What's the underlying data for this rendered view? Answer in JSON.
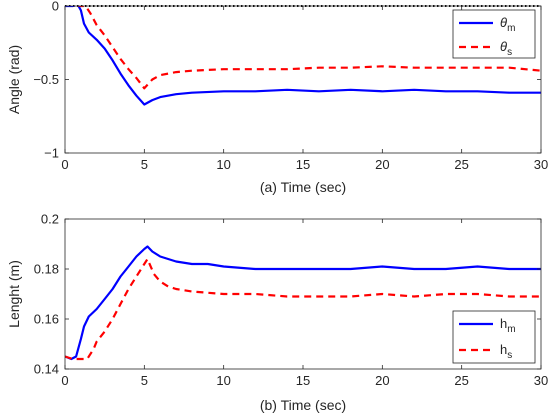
{
  "chart_data": [
    {
      "type": "line",
      "caption": "(a) Time (sec)",
      "ylabel": "Angle (rad)",
      "xlim": [
        0,
        30
      ],
      "ylim": [
        -1,
        0
      ],
      "xticks": [
        "0",
        "5",
        "10",
        "15",
        "20",
        "25",
        "30"
      ],
      "yticks": [
        "-1",
        "-0.5",
        "0"
      ],
      "grid": false,
      "legend_position": "top-right",
      "reference_line": {
        "y": 0,
        "style": "dotted",
        "color": "#000000"
      },
      "series": [
        {
          "name": "θ_m",
          "legend_main": "θ",
          "legend_sub": "m",
          "color": "#0000ff",
          "style": "solid",
          "x": [
            0,
            0.5,
            0.8,
            1.0,
            1.2,
            1.5,
            2.0,
            2.5,
            3.0,
            3.5,
            4.0,
            4.5,
            5.0,
            5.5,
            6.0,
            7.0,
            8.0,
            10.0,
            12.0,
            14.0,
            16.0,
            18.0,
            20.0,
            22.0,
            24.0,
            26.0,
            28.0,
            30.0
          ],
          "y": [
            0.0,
            0.0,
            0.01,
            -0.03,
            -0.12,
            -0.18,
            -0.23,
            -0.29,
            -0.37,
            -0.46,
            -0.54,
            -0.61,
            -0.67,
            -0.64,
            -0.62,
            -0.6,
            -0.59,
            -0.58,
            -0.58,
            -0.57,
            -0.58,
            -0.57,
            -0.58,
            -0.57,
            -0.58,
            -0.58,
            -0.59,
            -0.59
          ]
        },
        {
          "name": "θ_s",
          "legend_main": "θ",
          "legend_sub": "s",
          "color": "#ff0000",
          "style": "dashed",
          "x": [
            0,
            0.5,
            1.0,
            1.3,
            1.6,
            2.0,
            2.5,
            3.0,
            3.5,
            4.0,
            4.5,
            5.0,
            5.5,
            6.0,
            7.0,
            8.0,
            10.0,
            12.0,
            14.0,
            16.0,
            18.0,
            20.0,
            22.0,
            24.0,
            26.0,
            28.0,
            30.0
          ],
          "y": [
            0.01,
            0.01,
            0.0,
            0.0,
            -0.05,
            -0.13,
            -0.2,
            -0.28,
            -0.36,
            -0.43,
            -0.49,
            -0.56,
            -0.5,
            -0.47,
            -0.45,
            -0.44,
            -0.43,
            -0.43,
            -0.43,
            -0.42,
            -0.42,
            -0.41,
            -0.42,
            -0.42,
            -0.42,
            -0.42,
            -0.44
          ]
        }
      ]
    },
    {
      "type": "line",
      "caption": "(b) Time (sec)",
      "ylabel": "Lenght (m)",
      "xlim": [
        0,
        30
      ],
      "ylim": [
        0.14,
        0.2
      ],
      "xticks": [
        "0",
        "5",
        "10",
        "15",
        "20",
        "25",
        "30"
      ],
      "yticks": [
        "0.14",
        "0.16",
        "0.18",
        "0.2"
      ],
      "grid": false,
      "legend_position": "bottom-right",
      "series": [
        {
          "name": "h_m",
          "legend_main": "h",
          "legend_sub": "m",
          "color": "#0000ff",
          "style": "solid",
          "x": [
            0,
            0.4,
            0.7,
            1.0,
            1.2,
            1.5,
            2.0,
            2.5,
            3.0,
            3.5,
            4.0,
            4.5,
            5.0,
            5.2,
            5.5,
            6.0,
            7.0,
            8.0,
            9.0,
            10.0,
            12.0,
            14.0,
            16.0,
            18.0,
            20.0,
            22.0,
            24.0,
            26.0,
            28.0,
            30.0
          ],
          "y": [
            0.145,
            0.144,
            0.145,
            0.152,
            0.157,
            0.161,
            0.164,
            0.168,
            0.172,
            0.177,
            0.181,
            0.185,
            0.188,
            0.189,
            0.187,
            0.185,
            0.183,
            0.182,
            0.182,
            0.181,
            0.18,
            0.18,
            0.18,
            0.18,
            0.181,
            0.18,
            0.18,
            0.181,
            0.18,
            0.18
          ]
        },
        {
          "name": "h_s",
          "legend_main": "h",
          "legend_sub": "s",
          "color": "#ff0000",
          "style": "dashed",
          "x": [
            0,
            0.5,
            1.0,
            1.4,
            1.8,
            2.0,
            2.5,
            3.0,
            3.5,
            4.0,
            4.5,
            5.0,
            5.2,
            5.6,
            6.0,
            6.5,
            7.0,
            8.0,
            10.0,
            12.0,
            14.0,
            16.0,
            18.0,
            20.0,
            22.0,
            24.0,
            26.0,
            28.0,
            30.0
          ],
          "y": [
            0.145,
            0.144,
            0.144,
            0.144,
            0.148,
            0.151,
            0.155,
            0.16,
            0.166,
            0.172,
            0.177,
            0.182,
            0.184,
            0.178,
            0.175,
            0.173,
            0.172,
            0.171,
            0.17,
            0.17,
            0.169,
            0.169,
            0.169,
            0.17,
            0.169,
            0.17,
            0.17,
            0.169,
            0.169
          ]
        }
      ]
    }
  ]
}
